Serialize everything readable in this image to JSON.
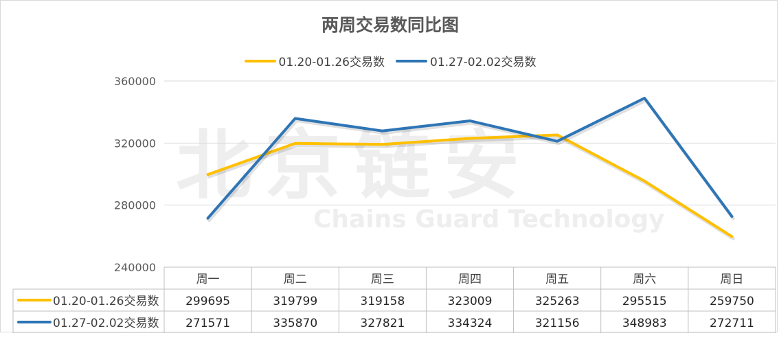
{
  "chart_data": {
    "type": "line",
    "title": "两周交易数同比图",
    "categories": [
      "周一",
      "周二",
      "周三",
      "周四",
      "周五",
      "周六",
      "周日"
    ],
    "series": [
      {
        "name": "01.20-01.26交易数",
        "color": "#ffc000",
        "values": [
          299695,
          319799,
          319158,
          323009,
          325263,
          295515,
          259750
        ]
      },
      {
        "name": "01.27-02.02交易数",
        "color": "#2e75b6",
        "values": [
          271571,
          335870,
          327821,
          334324,
          321156,
          348983,
          272711
        ]
      }
    ],
    "ylim": [
      240000,
      360000
    ],
    "yticks": [
      "240000",
      "280000",
      "320000",
      "360000"
    ],
    "grid": true,
    "legend_position": "top",
    "data_table": true
  },
  "watermark": {
    "cn": "北京链安",
    "en": "Chains Guard Technology"
  }
}
